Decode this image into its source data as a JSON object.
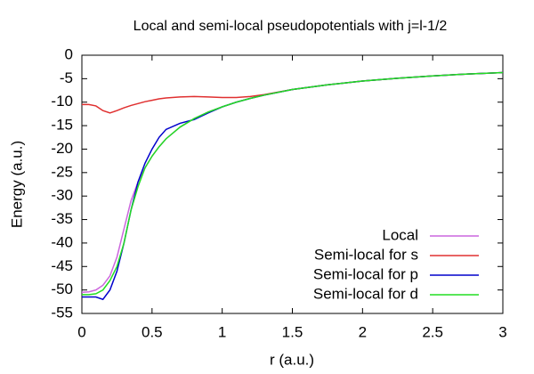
{
  "chart_data": {
    "type": "line",
    "title": "Local and semi-local pseudopotentials with j=l-1/2",
    "x_label": "r (a.u.)",
    "y_label": "Energy (a.u.)",
    "x": [
      0,
      0.05,
      0.1,
      0.15,
      0.2,
      0.25,
      0.3,
      0.35,
      0.4,
      0.45,
      0.5,
      0.55,
      0.6,
      0.7,
      0.8,
      0.9,
      1,
      1.1,
      1.2,
      1.3,
      1.5,
      1.75,
      2,
      2.25,
      2.5,
      2.75,
      3
    ],
    "series": [
      {
        "name": "Local",
        "color": "#cc66dd",
        "values": [
          -50.5,
          -50.4,
          -50,
          -49,
          -47,
          -43,
          -37,
          -31,
          -27,
          -24,
          -21.5,
          -19.5,
          -17.8,
          -15.3,
          -13.5,
          -12.1,
          -11,
          -10,
          -9.2,
          -8.5,
          -7.3,
          -6.3,
          -5.5,
          -4.9,
          -4.4,
          -4,
          -3.7
        ]
      },
      {
        "name": "Semi-local for s",
        "color": "#e03030",
        "values": [
          -10.5,
          -10.5,
          -10.8,
          -11.8,
          -12.3,
          -11.8,
          -11.2,
          -10.7,
          -10.3,
          -9.9,
          -9.6,
          -9.3,
          -9.1,
          -8.9,
          -8.8,
          -8.9,
          -9,
          -9,
          -8.8,
          -8.4,
          -7.3,
          -6.3,
          -5.5,
          -4.9,
          -4.4,
          -4,
          -3.7
        ]
      },
      {
        "name": "Semi-local for p",
        "color": "#0000cc",
        "values": [
          -51.5,
          -51.5,
          -51.5,
          -52,
          -50,
          -46,
          -40,
          -33,
          -27,
          -23,
          -20,
          -17.5,
          -15.8,
          -14.5,
          -13.7,
          -12.3,
          -11,
          -10,
          -9.2,
          -8.5,
          -7.3,
          -6.3,
          -5.5,
          -4.9,
          -4.4,
          -4,
          -3.7
        ]
      },
      {
        "name": "Semi-local for d",
        "color": "#22dd22",
        "values": [
          -51,
          -51,
          -50.8,
          -50,
          -48,
          -45,
          -40,
          -33,
          -28,
          -24,
          -21.5,
          -19.5,
          -17.8,
          -15.3,
          -13.5,
          -12.1,
          -11,
          -10,
          -9.2,
          -8.5,
          -7.3,
          -6.3,
          -5.5,
          -4.9,
          -4.4,
          -4,
          -3.7
        ]
      }
    ],
    "xlim": [
      0,
      3
    ],
    "xticks": [
      0,
      0.5,
      1,
      1.5,
      2,
      2.5,
      3
    ],
    "ylim": [
      -55,
      0
    ],
    "yticks": [
      -55,
      -50,
      -45,
      -40,
      -35,
      -30,
      -25,
      -20,
      -15,
      -10,
      -5,
      0
    ],
    "legend": "bottom-right"
  }
}
